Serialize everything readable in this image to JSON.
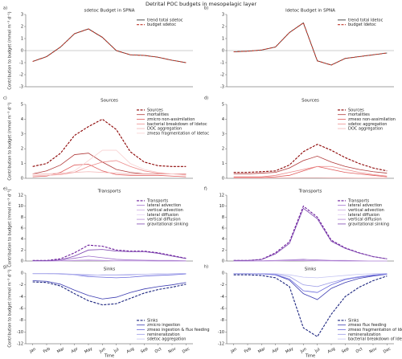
{
  "title": "Detrital POC budgets in mesopelagic layer",
  "chart_data": [
    {
      "type": "line",
      "panel_label": "a)",
      "title": "sdetoc Budget in SPNA",
      "ylabel": "Contribution to budget (mmol m⁻³ d⁻¹)",
      "ylim": [
        -3,
        3
      ],
      "yticks": [
        -3,
        -2,
        -1,
        0,
        1,
        2,
        3
      ],
      "zero_line": true,
      "legend": "upper right",
      "series": [
        {
          "name": "trend total sdetoc",
          "color": "#222222",
          "dashed": false,
          "values": [
            -0.9,
            -0.5,
            0.3,
            1.4,
            1.8,
            1.1,
            0.0,
            -0.35,
            -0.4,
            -0.55,
            -0.8,
            -1.0
          ]
        },
        {
          "name": "budget sdetoc",
          "color": "#c0392b",
          "dashed": true,
          "values": [
            -0.9,
            -0.5,
            0.3,
            1.4,
            1.8,
            1.1,
            0.0,
            -0.35,
            -0.4,
            -0.55,
            -0.8,
            -1.0
          ]
        }
      ]
    },
    {
      "type": "line",
      "panel_label": "b)",
      "title": "ldetoc Budget in SPNA",
      "ylim": [
        -3,
        3
      ],
      "yticks": [
        -3,
        -2,
        -1,
        0,
        1,
        2,
        3
      ],
      "zero_line": true,
      "legend": "upper right",
      "series": [
        {
          "name": "trend total ldetoc",
          "color": "#222222",
          "dashed": false,
          "values": [
            -0.1,
            -0.05,
            0.05,
            0.3,
            1.5,
            2.3,
            -0.85,
            -1.2,
            -0.65,
            -0.5,
            -0.35,
            -0.2
          ]
        },
        {
          "name": "budget ldetoc",
          "color": "#c0392b",
          "dashed": true,
          "values": [
            -0.1,
            -0.05,
            0.05,
            0.3,
            1.5,
            2.3,
            -0.85,
            -1.2,
            -0.65,
            -0.5,
            -0.35,
            -0.2
          ]
        }
      ]
    },
    {
      "type": "line",
      "panel_label": "c)",
      "title": "Sources",
      "ylabel": "Contribution to budget (mmol m⁻³ d⁻¹)",
      "ylim": [
        0,
        5
      ],
      "yticks": [
        0,
        1,
        2,
        3,
        4,
        5
      ],
      "legend": "upper right",
      "series": [
        {
          "name": "Sources",
          "color": "#8b0000",
          "dashed": true,
          "values": [
            0.8,
            1.0,
            1.7,
            2.9,
            3.5,
            4.0,
            3.3,
            1.8,
            1.1,
            0.85,
            0.8,
            0.8
          ]
        },
        {
          "name": "mortalities",
          "color": "#b03a3a",
          "dashed": false,
          "values": [
            0.3,
            0.5,
            0.9,
            1.6,
            1.7,
            1.1,
            0.6,
            0.4,
            0.3,
            0.3,
            0.3,
            0.3
          ]
        },
        {
          "name": "zmicro non-assimilation",
          "color": "#e05a5a",
          "dashed": false,
          "values": [
            0.1,
            0.15,
            0.4,
            0.9,
            0.95,
            0.5,
            0.25,
            0.2,
            0.2,
            0.2,
            0.15,
            0.1
          ]
        },
        {
          "name": "bacterial breakdown of ldetoc",
          "color": "#ec8a8a",
          "dashed": false,
          "values": [
            0.2,
            0.2,
            0.25,
            0.4,
            0.8,
            1.1,
            1.2,
            0.8,
            0.5,
            0.35,
            0.3,
            0.25
          ]
        },
        {
          "name": "DOC aggregation",
          "color": "#f2b4b4",
          "dashed": false,
          "values": [
            0.3,
            0.3,
            0.35,
            0.4,
            0.45,
            0.4,
            0.35,
            0.3,
            0.3,
            0.3,
            0.3,
            0.3
          ]
        },
        {
          "name": "zmeso fragmentation of ldetoc",
          "color": "#f8d2d2",
          "dashed": false,
          "values": [
            0.2,
            0.2,
            0.3,
            0.5,
            1.2,
            1.9,
            1.9,
            1.0,
            0.6,
            0.4,
            0.3,
            0.2
          ]
        }
      ]
    },
    {
      "type": "line",
      "panel_label": "d)",
      "title": "Sources",
      "ylim": [
        0,
        5
      ],
      "yticks": [
        0,
        1,
        2,
        3,
        4,
        5
      ],
      "legend": "upper right",
      "series": [
        {
          "name": "Sources",
          "color": "#8b0000",
          "dashed": true,
          "values": [
            0.4,
            0.4,
            0.45,
            0.5,
            0.9,
            1.8,
            2.3,
            1.9,
            1.4,
            1.0,
            0.7,
            0.5
          ]
        },
        {
          "name": "mortalities",
          "color": "#b03a3a",
          "dashed": false,
          "values": [
            0.3,
            0.3,
            0.35,
            0.4,
            0.7,
            1.2,
            1.5,
            1.1,
            0.8,
            0.6,
            0.45,
            0.35
          ]
        },
        {
          "name": "zmeso non-assimilation",
          "color": "#e05a5a",
          "dashed": false,
          "values": [
            0.05,
            0.05,
            0.05,
            0.1,
            0.2,
            0.5,
            0.8,
            0.6,
            0.4,
            0.3,
            0.2,
            0.1
          ]
        },
        {
          "name": "sdetoc aggregation",
          "color": "#ec8a8a",
          "dashed": false,
          "values": [
            0.1,
            0.1,
            0.1,
            0.2,
            0.4,
            0.6,
            0.8,
            0.8,
            0.6,
            0.4,
            0.25,
            0.15
          ]
        },
        {
          "name": "DOC aggregation",
          "color": "#f2b4b4",
          "dashed": false,
          "values": [
            0.02,
            0.02,
            0.02,
            0.03,
            0.03,
            0.04,
            0.04,
            0.03,
            0.03,
            0.02,
            0.02,
            0.02
          ]
        }
      ]
    },
    {
      "type": "line",
      "panel_label": "e)",
      "title": "Transports",
      "ylabel": "Contribution to budget (mmol m⁻³ d⁻¹)",
      "ylim": [
        0,
        12
      ],
      "yticks": [
        0,
        2,
        4,
        6,
        8,
        10,
        12
      ],
      "legend": "upper right",
      "series": [
        {
          "name": "Transports",
          "color": "#6a1b9a",
          "dashed": true,
          "values": [
            0.1,
            0.1,
            0.4,
            1.5,
            2.9,
            2.7,
            2.0,
            1.8,
            1.8,
            1.5,
            1.0,
            0.5
          ]
        },
        {
          "name": "lateral advection",
          "color": "#9c6bc9",
          "dashed": false,
          "values": [
            0.05,
            0.05,
            0.2,
            0.5,
            0.9,
            0.6,
            0.3,
            0.2,
            0.15,
            0.1,
            0.1,
            0.05
          ]
        },
        {
          "name": "vertical advection",
          "color": "#c9a6e3",
          "dashed": false,
          "values": [
            0.0,
            0.0,
            0.05,
            0.1,
            0.2,
            0.1,
            0.0,
            0.0,
            0.0,
            0.0,
            0.0,
            0.0
          ]
        },
        {
          "name": "lateral diffusion",
          "color": "#e2cdf2",
          "dashed": false,
          "values": [
            0.0,
            0.0,
            0.0,
            0.05,
            0.1,
            0.05,
            0.0,
            0.0,
            0.0,
            0.0,
            0.0,
            0.0
          ]
        },
        {
          "name": "vertical diffusion",
          "color": "#b58ad6",
          "dashed": false,
          "values": [
            0.0,
            0.0,
            0.05,
            0.1,
            0.15,
            0.1,
            0.05,
            0.05,
            0.05,
            0.0,
            0.0,
            0.0
          ]
        },
        {
          "name": "gravitational sinking",
          "color": "#7e45b0",
          "dashed": false,
          "values": [
            0.05,
            0.05,
            0.2,
            0.9,
            2.0,
            2.1,
            1.8,
            1.7,
            1.7,
            1.4,
            0.9,
            0.45
          ]
        }
      ]
    },
    {
      "type": "line",
      "panel_label": "f)",
      "title": "Transports",
      "ylim": [
        0,
        12
      ],
      "yticks": [
        0,
        2,
        4,
        6,
        8,
        10,
        12
      ],
      "legend": "upper right",
      "series": [
        {
          "name": "Transports",
          "color": "#6a1b9a",
          "dashed": true,
          "values": [
            0.1,
            0.1,
            0.3,
            1.5,
            3.5,
            10.0,
            8.0,
            3.8,
            2.4,
            1.5,
            0.8,
            0.4
          ]
        },
        {
          "name": "lateral advection",
          "color": "#9c6bc9",
          "dashed": false,
          "values": [
            0.0,
            0.0,
            0.05,
            0.1,
            0.2,
            0.3,
            0.2,
            0.1,
            0.1,
            0.05,
            0.0,
            0.0
          ]
        },
        {
          "name": "vertical advection",
          "color": "#c9a6e3",
          "dashed": false,
          "values": [
            0.0,
            0.0,
            0.0,
            0.05,
            0.1,
            0.1,
            0.05,
            0.0,
            0.0,
            0.0,
            0.0,
            0.0
          ]
        },
        {
          "name": "lateral diffusion",
          "color": "#e2cdf2",
          "dashed": false,
          "values": [
            0.0,
            0.0,
            0.0,
            0.0,
            0.05,
            0.05,
            0.0,
            0.0,
            0.0,
            0.0,
            0.0,
            0.0
          ]
        },
        {
          "name": "vertical diffusion",
          "color": "#b58ad6",
          "dashed": false,
          "values": [
            0.0,
            0.0,
            0.0,
            0.05,
            0.1,
            0.1,
            0.05,
            0.05,
            0.0,
            0.0,
            0.0,
            0.0
          ]
        },
        {
          "name": "gravitational sinking",
          "color": "#7e45b0",
          "dashed": false,
          "values": [
            0.1,
            0.1,
            0.25,
            1.3,
            3.2,
            9.6,
            7.7,
            3.6,
            2.3,
            1.45,
            0.8,
            0.4
          ]
        }
      ]
    },
    {
      "type": "line",
      "panel_label": "g)",
      "title": "Sinks",
      "ylabel": "Contribution to budget (mmol m⁻³ d⁻¹)",
      "xlabel": "Time",
      "ylim": [
        -12,
        0
      ],
      "yticks": [
        -12,
        -10,
        -8,
        -6,
        -4,
        -2,
        0
      ],
      "legend": "lower right",
      "categories": [
        "Jan",
        "Feb",
        "Mar",
        "Apr",
        "May",
        "Jun",
        "Jul",
        "Aug",
        "Sep",
        "Oct",
        "Nov",
        "Dec"
      ],
      "series": [
        {
          "name": "Sinks",
          "color": "#1a237e",
          "dashed": true,
          "values": [
            -1.5,
            -1.6,
            -2.2,
            -3.5,
            -4.7,
            -5.4,
            -5.2,
            -4.3,
            -3.4,
            -2.8,
            -2.4,
            -1.9
          ]
        },
        {
          "name": "zmicro ingestion",
          "color": "#3a3ab0",
          "dashed": false,
          "values": [
            -1.3,
            -1.4,
            -1.9,
            -2.9,
            -3.8,
            -4.4,
            -4.1,
            -3.3,
            -2.7,
            -2.3,
            -2.0,
            -1.6
          ]
        },
        {
          "name": "zmeso ingestion & flux feeding",
          "color": "#6a6adc",
          "dashed": false,
          "values": [
            -0.1,
            -0.1,
            -0.15,
            -0.3,
            -0.6,
            -0.7,
            -0.8,
            -0.7,
            -0.5,
            -0.4,
            -0.3,
            -0.15
          ]
        },
        {
          "name": "remineralization",
          "color": "#9898e6",
          "dashed": false,
          "values": [
            -0.05,
            -0.05,
            -0.1,
            -0.2,
            -0.3,
            -0.35,
            -0.35,
            -0.3,
            -0.2,
            -0.15,
            -0.1,
            -0.05
          ]
        },
        {
          "name": "sdetoc aggregation",
          "color": "#c4c4f2",
          "dashed": false,
          "values": [
            -0.1,
            -0.1,
            -0.2,
            -0.3,
            -0.4,
            -0.3,
            -0.3,
            -0.2,
            -0.2,
            -0.1,
            -0.1,
            -0.1
          ]
        }
      ]
    },
    {
      "type": "line",
      "panel_label": "h)",
      "title": "Sinks",
      "xlabel": "Time",
      "ylim": [
        -12,
        0
      ],
      "yticks": [
        -12,
        -10,
        -8,
        -6,
        -4,
        -2,
        0
      ],
      "legend": "lower right",
      "categories": [
        "Jan",
        "Feb",
        "Mar",
        "Apr",
        "May",
        "Jun",
        "Jul",
        "Aug",
        "Sep",
        "Oct",
        "Nov",
        "Dec"
      ],
      "series": [
        {
          "name": "Sinks",
          "color": "#1a237e",
          "dashed": true,
          "values": [
            -0.3,
            -0.3,
            -0.4,
            -0.8,
            -2.3,
            -9.3,
            -10.8,
            -7.0,
            -4.0,
            -2.4,
            -1.3,
            -0.5
          ]
        },
        {
          "name": "zmeso flux feeding",
          "color": "#3a3ab0",
          "dashed": false,
          "values": [
            -0.1,
            -0.1,
            -0.1,
            -0.3,
            -1.2,
            -3.5,
            -4.5,
            -2.6,
            -1.6,
            -0.9,
            -0.5,
            -0.2
          ]
        },
        {
          "name": "zmeso fragmentation of ldetoc",
          "color": "#6a6adc",
          "dashed": false,
          "values": [
            -0.1,
            -0.1,
            -0.15,
            -0.3,
            -1.0,
            -3.0,
            -3.3,
            -2.0,
            -1.1,
            -0.7,
            -0.4,
            -0.2
          ]
        },
        {
          "name": "remineralization",
          "color": "#9898e6",
          "dashed": false,
          "values": [
            -0.05,
            -0.05,
            -0.1,
            -0.2,
            -0.6,
            -2.0,
            -2.3,
            -1.6,
            -1.0,
            -0.6,
            -0.3,
            -0.1
          ]
        },
        {
          "name": "bacterial breakdown of ldetoc",
          "color": "#c4c4f2",
          "dashed": false,
          "values": [
            -0.05,
            -0.05,
            -0.05,
            -0.1,
            -0.3,
            -0.7,
            -0.8,
            -0.6,
            -0.4,
            -0.2,
            -0.1,
            -0.05
          ]
        }
      ]
    }
  ]
}
